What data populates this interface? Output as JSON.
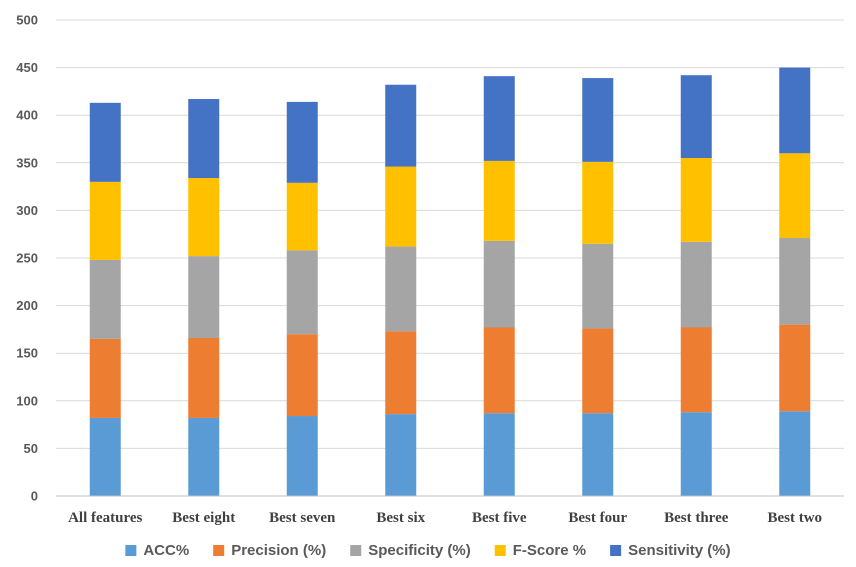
{
  "chart_data": {
    "type": "bar",
    "stacked": true,
    "categories": [
      "All features",
      "Best eight",
      "Best seven",
      "Best six",
      "Best five",
      "Best four",
      "Best three",
      "Best two"
    ],
    "series": [
      {
        "name": "ACC%",
        "color": "#5b9bd5",
        "values": [
          82,
          82,
          84,
          86,
          87,
          87,
          88,
          89
        ]
      },
      {
        "name": "Precision (%)",
        "color": "#ed7d31",
        "values": [
          83,
          84,
          86,
          87,
          90,
          89,
          89,
          91
        ]
      },
      {
        "name": "Specificity (%)",
        "color": "#a5a5a5",
        "values": [
          83,
          86,
          88,
          89,
          91,
          89,
          90,
          91
        ]
      },
      {
        "name": "F-Score %",
        "color": "#ffc000",
        "values": [
          82,
          82,
          71,
          84,
          84,
          86,
          88,
          89
        ]
      },
      {
        "name": "Sensitivity (%)",
        "color": "#4472c4",
        "values": [
          83,
          83,
          85,
          86,
          89,
          88,
          87,
          90
        ]
      }
    ],
    "y_ticks": [
      "0",
      "50",
      "100",
      "150",
      "200",
      "250",
      "300",
      "350",
      "400",
      "450",
      "500"
    ],
    "ylim": [
      0,
      500
    ],
    "grid": true,
    "legend_position": "bottom"
  }
}
